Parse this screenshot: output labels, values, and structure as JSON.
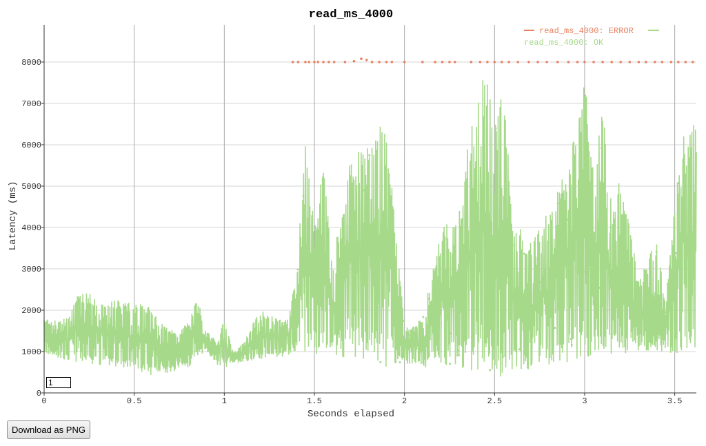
{
  "chart_data": {
    "type": "line",
    "title": "read_ms_4000",
    "xlabel": "Seconds elapsed",
    "ylabel": "Latency (ms)",
    "xlim": [
      0,
      3.62
    ],
    "ylim": [
      0,
      8900
    ],
    "x_ticks": [
      0,
      0.5,
      1,
      1.5,
      2,
      2.5,
      3,
      3.5
    ],
    "y_ticks": [
      0,
      1000,
      2000,
      3000,
      4000,
      5000,
      6000,
      7000,
      8000
    ],
    "grid": "on",
    "legend_position": "top-right",
    "series": [
      {
        "name": "read_ms_4000: ERROR",
        "color": "#e8805f",
        "mode": "points",
        "points": [
          [
            1.38,
            8000
          ],
          [
            1.41,
            8000
          ],
          [
            1.45,
            8000
          ],
          [
            1.47,
            8000
          ],
          [
            1.5,
            8000
          ],
          [
            1.52,
            8000
          ],
          [
            1.55,
            8000
          ],
          [
            1.58,
            8000
          ],
          [
            1.61,
            8000
          ],
          [
            1.67,
            8000
          ],
          [
            1.72,
            8020
          ],
          [
            1.76,
            8080
          ],
          [
            1.79,
            8050
          ],
          [
            1.82,
            8000
          ],
          [
            1.86,
            8000
          ],
          [
            1.9,
            8000
          ],
          [
            1.93,
            8000
          ],
          [
            2.0,
            8000
          ],
          [
            2.1,
            8000
          ],
          [
            2.17,
            8000
          ],
          [
            2.21,
            8000
          ],
          [
            2.25,
            8000
          ],
          [
            2.28,
            8000
          ],
          [
            2.37,
            8000
          ],
          [
            2.42,
            8000
          ],
          [
            2.46,
            8000
          ],
          [
            2.5,
            8000
          ],
          [
            2.54,
            8000
          ],
          [
            2.58,
            8000
          ],
          [
            2.63,
            8000
          ],
          [
            2.69,
            8000
          ],
          [
            2.74,
            8000
          ],
          [
            2.79,
            8000
          ],
          [
            2.85,
            8000
          ],
          [
            2.91,
            8000
          ],
          [
            2.96,
            8000
          ],
          [
            3.0,
            8000
          ],
          [
            3.05,
            8000
          ],
          [
            3.1,
            8000
          ],
          [
            3.15,
            8000
          ],
          [
            3.2,
            8000
          ],
          [
            3.25,
            8000
          ],
          [
            3.3,
            8000
          ],
          [
            3.34,
            8000
          ],
          [
            3.39,
            8000
          ],
          [
            3.43,
            8000
          ],
          [
            3.48,
            8000
          ],
          [
            3.52,
            8000
          ],
          [
            3.56,
            8000
          ],
          [
            3.6,
            8000
          ]
        ]
      },
      {
        "name": "read_ms_4000: OK",
        "color": "#a6d98a",
        "mode": "bands",
        "bands": [
          [
            0.0,
            900,
            1800
          ],
          [
            0.05,
            850,
            1750
          ],
          [
            0.1,
            800,
            1800
          ],
          [
            0.15,
            750,
            1900
          ],
          [
            0.17,
            750,
            2450
          ],
          [
            0.25,
            700,
            2400
          ],
          [
            0.35,
            650,
            2300
          ],
          [
            0.45,
            600,
            2200
          ],
          [
            0.55,
            500,
            2150
          ],
          [
            0.6,
            400,
            2100
          ],
          [
            0.7,
            500,
            1500
          ],
          [
            0.8,
            600,
            1700
          ],
          [
            0.85,
            900,
            2300
          ],
          [
            0.9,
            1000,
            1500
          ],
          [
            0.95,
            700,
            1300
          ],
          [
            1.0,
            600,
            1800
          ],
          [
            1.05,
            700,
            1000
          ],
          [
            1.1,
            750,
            1200
          ],
          [
            1.2,
            800,
            2000
          ],
          [
            1.3,
            850,
            1800
          ],
          [
            1.35,
            900,
            1900
          ],
          [
            1.4,
            1000,
            2800
          ],
          [
            1.45,
            1000,
            6200
          ],
          [
            1.5,
            800,
            4000
          ],
          [
            1.55,
            900,
            5500
          ],
          [
            1.6,
            800,
            3200
          ],
          [
            1.7,
            900,
            5700
          ],
          [
            1.8,
            700,
            6300
          ],
          [
            1.9,
            600,
            6700
          ],
          [
            2.0,
            700,
            1600
          ],
          [
            2.1,
            600,
            1800
          ],
          [
            2.2,
            700,
            4000
          ],
          [
            2.3,
            600,
            4600
          ],
          [
            2.4,
            500,
            7300
          ],
          [
            2.45,
            400,
            7800
          ],
          [
            2.5,
            300,
            6500
          ],
          [
            2.55,
            400,
            7500
          ],
          [
            2.6,
            500,
            4200
          ],
          [
            2.7,
            500,
            3700
          ],
          [
            2.8,
            600,
            4400
          ],
          [
            2.9,
            700,
            5600
          ],
          [
            3.0,
            800,
            7800
          ],
          [
            3.05,
            800,
            5200
          ],
          [
            3.1,
            900,
            7100
          ],
          [
            3.15,
            800,
            4500
          ],
          [
            3.2,
            900,
            5400
          ],
          [
            3.3,
            1000,
            2700
          ],
          [
            3.4,
            1000,
            3800
          ],
          [
            3.45,
            1000,
            2200
          ],
          [
            3.5,
            900,
            4500
          ],
          [
            3.55,
            900,
            6500
          ],
          [
            3.6,
            1000,
            6500
          ]
        ]
      }
    ]
  },
  "controls": {
    "smoothing_value": "1",
    "download_label": "Download as PNG"
  }
}
